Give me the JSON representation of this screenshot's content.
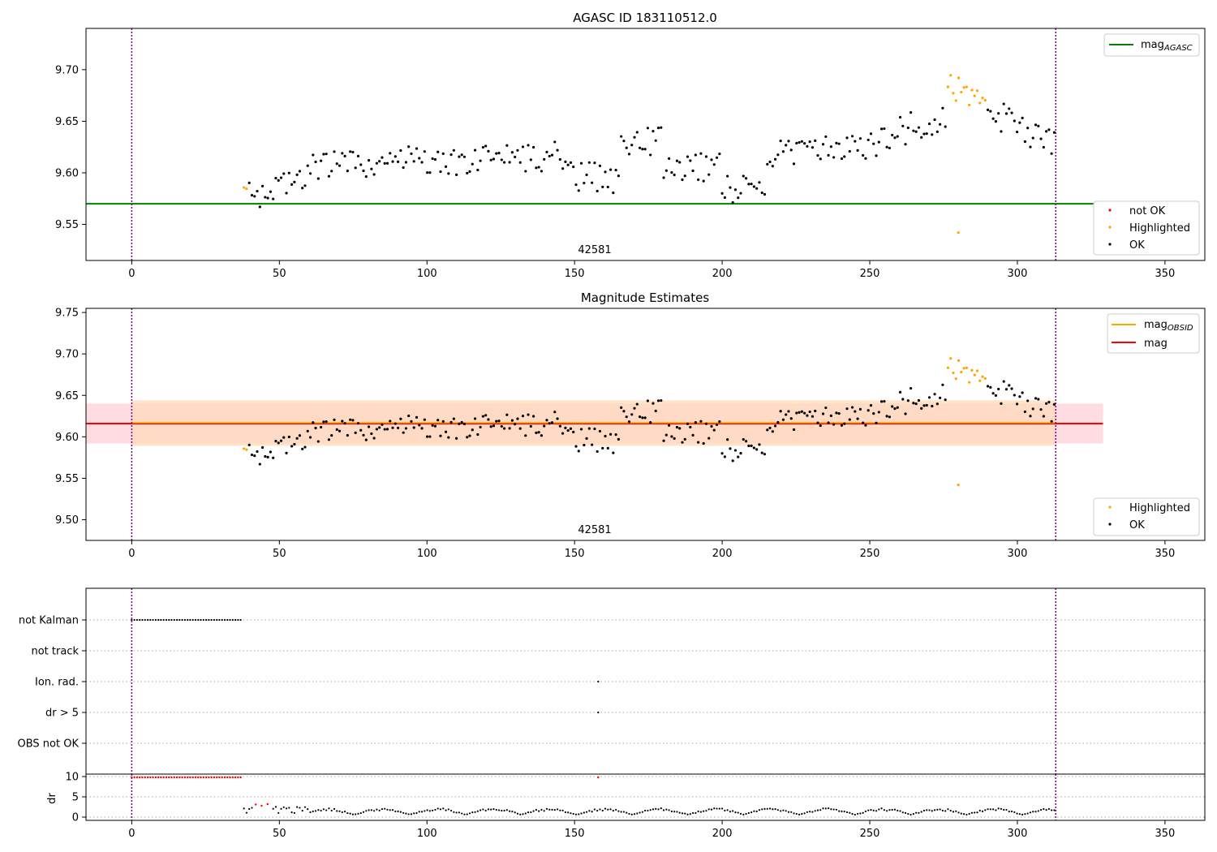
{
  "x_ticks": [
    0,
    50,
    100,
    150,
    200,
    250,
    300,
    350
  ],
  "xlim": [
    -15.5,
    363.5
  ],
  "vlines": [
    0,
    313
  ],
  "colors": {
    "ok": "#000000",
    "highlighted": "#ffa500",
    "not_ok": "#ff0000",
    "agasc": "#008000",
    "mag": "#ff0000",
    "mag_obsid": "#ffa500",
    "vline": "#800080",
    "band_mag": "#ffc0cb",
    "band_obsid": "#ffdab9"
  },
  "chart_data": [
    {
      "type": "scatter",
      "title": "AGASC ID 183110512.0",
      "annotation": "42581",
      "ylim": [
        9.515,
        9.74
      ],
      "y_ticks": [
        "9.55",
        "9.60",
        "9.65",
        "9.70"
      ],
      "agasc_mag": 9.57,
      "legends": [
        {
          "entries": [
            {
              "kind": "line",
              "label": "mag",
              "sub": "AGASC",
              "color": "agasc"
            }
          ]
        },
        {
          "entries": [
            {
              "kind": "dot",
              "label": "not OK",
              "color": "not_ok"
            },
            {
              "kind": "dot",
              "label": "Highlighted",
              "color": "highlighted"
            },
            {
              "kind": "dot",
              "label": "OK",
              "color": "ok"
            }
          ]
        }
      ]
    },
    {
      "type": "scatter",
      "title": "Magnitude Estimates",
      "annotation": "42581",
      "ylim": [
        9.475,
        9.755
      ],
      "y_ticks": [
        "9.50",
        "9.55",
        "9.60",
        "9.65",
        "9.70",
        "9.75"
      ],
      "mag": 9.616,
      "mag_band": [
        9.592,
        9.64
      ],
      "mag_obsid": 9.617,
      "obsid_band": [
        9.589,
        9.644
      ],
      "legends": [
        {
          "entries": [
            {
              "kind": "line",
              "label": "mag",
              "sub": "OBSID",
              "color": "mag_obsid"
            },
            {
              "kind": "line",
              "label": "mag",
              "color": "mag"
            }
          ]
        },
        {
          "entries": [
            {
              "kind": "dot",
              "label": "Highlighted",
              "color": "highlighted"
            },
            {
              "kind": "dot",
              "label": "OK",
              "color": "ok"
            }
          ]
        }
      ]
    },
    {
      "type": "scatter",
      "categories": [
        "not Kalman",
        "not track",
        "Ion. rad.",
        "dr > 5",
        "OBS not OK"
      ],
      "flags": {
        "not Kalman": {
          "x_range": [
            0,
            37
          ]
        },
        "Ion. rad.": {
          "x": [
            158
          ]
        },
        "dr > 5": {
          "x": [
            158
          ]
        }
      }
    },
    {
      "type": "scatter",
      "ylabel": "dr",
      "ylim": [
        -0.8,
        10.6
      ],
      "y_ticks": [
        "0",
        "5",
        "10"
      ],
      "red_points": {
        "x_range": [
          0,
          37
        ],
        "y": 9.8,
        "extra": [
          {
            "x": 158,
            "y": 9.8
          },
          {
            "x": 42,
            "y": 3.1
          },
          {
            "x": 44,
            "y": 2.8
          },
          {
            "x": 46,
            "y": 3.2
          }
        ]
      }
    }
  ]
}
